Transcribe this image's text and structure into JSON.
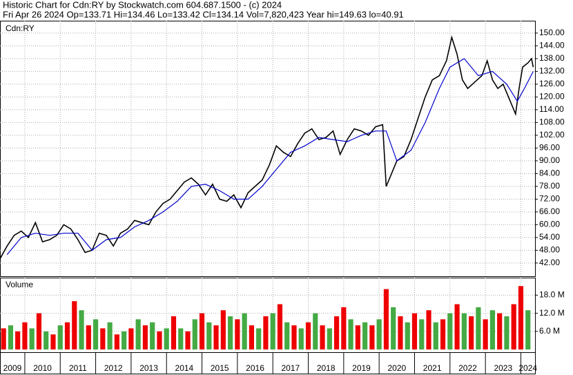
{
  "chart_data": {
    "type": "stock",
    "title": "Historic Chart for Cdn:RY by Stockwatch.com 604.687.1500 - (c) 2024",
    "subtitle": "Fri Apr 26 2024  Op=133.71  Hi=134.46  Lo=133.42  Cl=134.14  Vol=7,820,423  Year hi=149.63  lo=40.91",
    "price_label": "Cdn:RY",
    "volume_label": "Volume",
    "xlim": [
      2009.3,
      2024.4
    ],
    "xticks": [
      2010,
      2011,
      2012,
      2013,
      2014,
      2015,
      2016,
      2017,
      2018,
      2019,
      2020,
      2021,
      2022,
      2023,
      2024
    ],
    "year_labels": [
      "2009",
      "2010",
      "2011",
      "2012",
      "2013",
      "2014",
      "2015",
      "2016",
      "2017",
      "2018",
      "2019",
      "2020",
      "2021",
      "2022",
      "2023",
      "2024"
    ],
    "ylim": [
      35.8,
      155.8
    ],
    "yticks": [
      {
        "value": 42,
        "label": "42.00"
      },
      {
        "value": 48,
        "label": "48.00"
      },
      {
        "value": 54,
        "label": "54.00"
      },
      {
        "value": 60,
        "label": "60.00"
      },
      {
        "value": 66,
        "label": "66.00"
      },
      {
        "value": 72,
        "label": "72.00"
      },
      {
        "value": 78,
        "label": "78.00"
      },
      {
        "value": 84,
        "label": "84.00"
      },
      {
        "value": 90,
        "label": "90.00"
      },
      {
        "value": 96,
        "label": "96.00"
      },
      {
        "value": 102,
        "label": "102.00"
      },
      {
        "value": 108,
        "label": "108.00"
      },
      {
        "value": 114,
        "label": "114.00"
      },
      {
        "value": 120,
        "label": "120.00"
      },
      {
        "value": 126,
        "label": "126.00"
      },
      {
        "value": 132,
        "label": "132.00"
      },
      {
        "value": 138,
        "label": "138.00"
      },
      {
        "value": 144,
        "label": "144.00"
      },
      {
        "value": 150,
        "label": "150.00"
      }
    ],
    "series": [
      {
        "color": "#000000",
        "x": [
          2009.3,
          2009.5,
          2009.7,
          2009.9,
          2010.1,
          2010.3,
          2010.5,
          2010.7,
          2010.9,
          2011.1,
          2011.3,
          2011.5,
          2011.7,
          2011.9,
          2012.1,
          2012.3,
          2012.5,
          2012.7,
          2012.9,
          2013.1,
          2013.3,
          2013.5,
          2013.7,
          2013.9,
          2014.1,
          2014.3,
          2014.5,
          2014.7,
          2014.9,
          2015.1,
          2015.3,
          2015.5,
          2015.7,
          2015.9,
          2016.1,
          2016.3,
          2016.5,
          2016.7,
          2016.9,
          2017.1,
          2017.3,
          2017.5,
          2017.7,
          2017.9,
          2018.1,
          2018.3,
          2018.5,
          2018.7,
          2018.9,
          2019.1,
          2019.3,
          2019.5,
          2019.7,
          2019.9,
          2020.1,
          2020.2,
          2020.3,
          2020.5,
          2020.7,
          2020.9,
          2021.1,
          2021.3,
          2021.5,
          2021.7,
          2021.9,
          2022.05,
          2022.2,
          2022.35,
          2022.5,
          2022.7,
          2022.9,
          2023.05,
          2023.2,
          2023.35,
          2023.5,
          2023.7,
          2023.85,
          2023.95,
          2024.05,
          2024.2,
          2024.3,
          2024.35
        ],
        "values": [
          44,
          50,
          55,
          57,
          54,
          61,
          52,
          53,
          55,
          60,
          58,
          53,
          47,
          48,
          56,
          55,
          50,
          56,
          58,
          62,
          61,
          60,
          66,
          70,
          72,
          76,
          80,
          82,
          79,
          74,
          79,
          72,
          71,
          74,
          68,
          75,
          78,
          81,
          88,
          97,
          94,
          92,
          98,
          103,
          105,
          100,
          101,
          104,
          93,
          100,
          105,
          104,
          102,
          106,
          107,
          78,
          82,
          90,
          92,
          100,
          110,
          120,
          128,
          130,
          137,
          148,
          140,
          128,
          124,
          127,
          130,
          137,
          128,
          124,
          126,
          118,
          112,
          124,
          134,
          136,
          138,
          134
        ]
      },
      {
        "color": "#0000cc",
        "x": [
          2009.5,
          2009.9,
          2010.3,
          2010.7,
          2011.1,
          2011.5,
          2011.9,
          2012.3,
          2012.7,
          2013.1,
          2013.5,
          2013.9,
          2014.3,
          2014.7,
          2015.1,
          2015.5,
          2015.9,
          2016.3,
          2016.7,
          2017.1,
          2017.5,
          2017.9,
          2018.3,
          2018.7,
          2019.1,
          2019.5,
          2019.9,
          2020.2,
          2020.5,
          2020.9,
          2021.3,
          2021.7,
          2022.0,
          2022.4,
          2022.8,
          2023.2,
          2023.6,
          2023.9,
          2024.1,
          2024.35
        ],
        "values": [
          46,
          54,
          56,
          55,
          56,
          56,
          48,
          53,
          54,
          59,
          62,
          66,
          71,
          78,
          79,
          76,
          72,
          72,
          78,
          86,
          94,
          97,
          101,
          100,
          99,
          102,
          104,
          104,
          90,
          95,
          108,
          124,
          134,
          138,
          130,
          132,
          126,
          118,
          124,
          132
        ]
      }
    ],
    "volume": {
      "ylim": [
        -0.9,
        23.8
      ],
      "yticks": [
        {
          "value": 6,
          "label": "6.0 M"
        },
        {
          "value": 12,
          "label": "12.0 M"
        },
        {
          "value": 18,
          "label": "18.0 M"
        }
      ],
      "x": [
        2009.4,
        2009.6,
        2009.8,
        2010.0,
        2010.2,
        2010.4,
        2010.6,
        2010.8,
        2011.0,
        2011.2,
        2011.4,
        2011.6,
        2011.8,
        2012.0,
        2012.2,
        2012.4,
        2012.6,
        2012.8,
        2013.0,
        2013.2,
        2013.4,
        2013.6,
        2013.8,
        2014.0,
        2014.2,
        2014.4,
        2014.6,
        2014.8,
        2015.0,
        2015.2,
        2015.4,
        2015.6,
        2015.8,
        2016.0,
        2016.2,
        2016.4,
        2016.6,
        2016.8,
        2017.0,
        2017.2,
        2017.4,
        2017.6,
        2017.8,
        2018.0,
        2018.2,
        2018.4,
        2018.6,
        2018.8,
        2019.0,
        2019.2,
        2019.4,
        2019.6,
        2019.8,
        2020.0,
        2020.2,
        2020.4,
        2020.6,
        2020.8,
        2021.0,
        2021.2,
        2021.4,
        2021.6,
        2021.8,
        2022.0,
        2022.2,
        2022.4,
        2022.6,
        2022.8,
        2023.0,
        2023.2,
        2023.4,
        2023.6,
        2023.8,
        2024.0,
        2024.2
      ],
      "values": [
        7,
        8,
        6,
        9,
        7,
        12,
        6,
        5,
        8,
        9,
        16,
        13,
        8,
        10,
        7,
        9,
        5,
        6,
        7,
        10,
        8,
        9,
        6,
        7,
        11,
        7,
        6,
        10,
        12,
        9,
        8,
        13,
        11,
        10,
        12,
        8,
        7,
        11,
        12,
        15,
        9,
        8,
        7,
        9,
        12,
        8,
        7,
        11,
        14,
        10,
        8,
        9,
        8,
        10,
        20,
        14,
        11,
        9,
        12,
        10,
        13,
        9,
        10,
        12,
        15,
        12,
        11,
        14,
        10,
        13,
        12,
        11,
        15,
        21,
        13
      ],
      "colors": [
        "#ee0000",
        "#44aa44",
        "#ee0000",
        "#ee0000",
        "#44aa44",
        "#ee0000",
        "#44aa44",
        "#ee0000",
        "#44aa44",
        "#ee0000",
        "#ee0000",
        "#44aa44",
        "#ee0000",
        "#44aa44",
        "#ee0000",
        "#44aa44",
        "#ee0000",
        "#44aa44",
        "#ee0000",
        "#44aa44",
        "#ee0000",
        "#44aa44",
        "#ee0000",
        "#44aa44",
        "#ee0000",
        "#44aa44",
        "#ee0000",
        "#44aa44",
        "#ee0000",
        "#44aa44",
        "#ee0000",
        "#ee0000",
        "#44aa44",
        "#ee0000",
        "#44aa44",
        "#ee0000",
        "#44aa44",
        "#ee0000",
        "#44aa44",
        "#ee0000",
        "#44aa44",
        "#ee0000",
        "#44aa44",
        "#ee0000",
        "#44aa44",
        "#ee0000",
        "#44aa44",
        "#ee0000",
        "#ee0000",
        "#44aa44",
        "#ee0000",
        "#44aa44",
        "#ee0000",
        "#44aa44",
        "#ee0000",
        "#44aa44",
        "#ee0000",
        "#44aa44",
        "#ee0000",
        "#44aa44",
        "#ee0000",
        "#44aa44",
        "#ee0000",
        "#44aa44",
        "#ee0000",
        "#44aa44",
        "#ee0000",
        "#44aa44",
        "#ee0000",
        "#44aa44",
        "#ee0000",
        "#44aa44",
        "#ee0000",
        "#ee0000",
        "#44aa44"
      ]
    },
    "grid": true
  }
}
